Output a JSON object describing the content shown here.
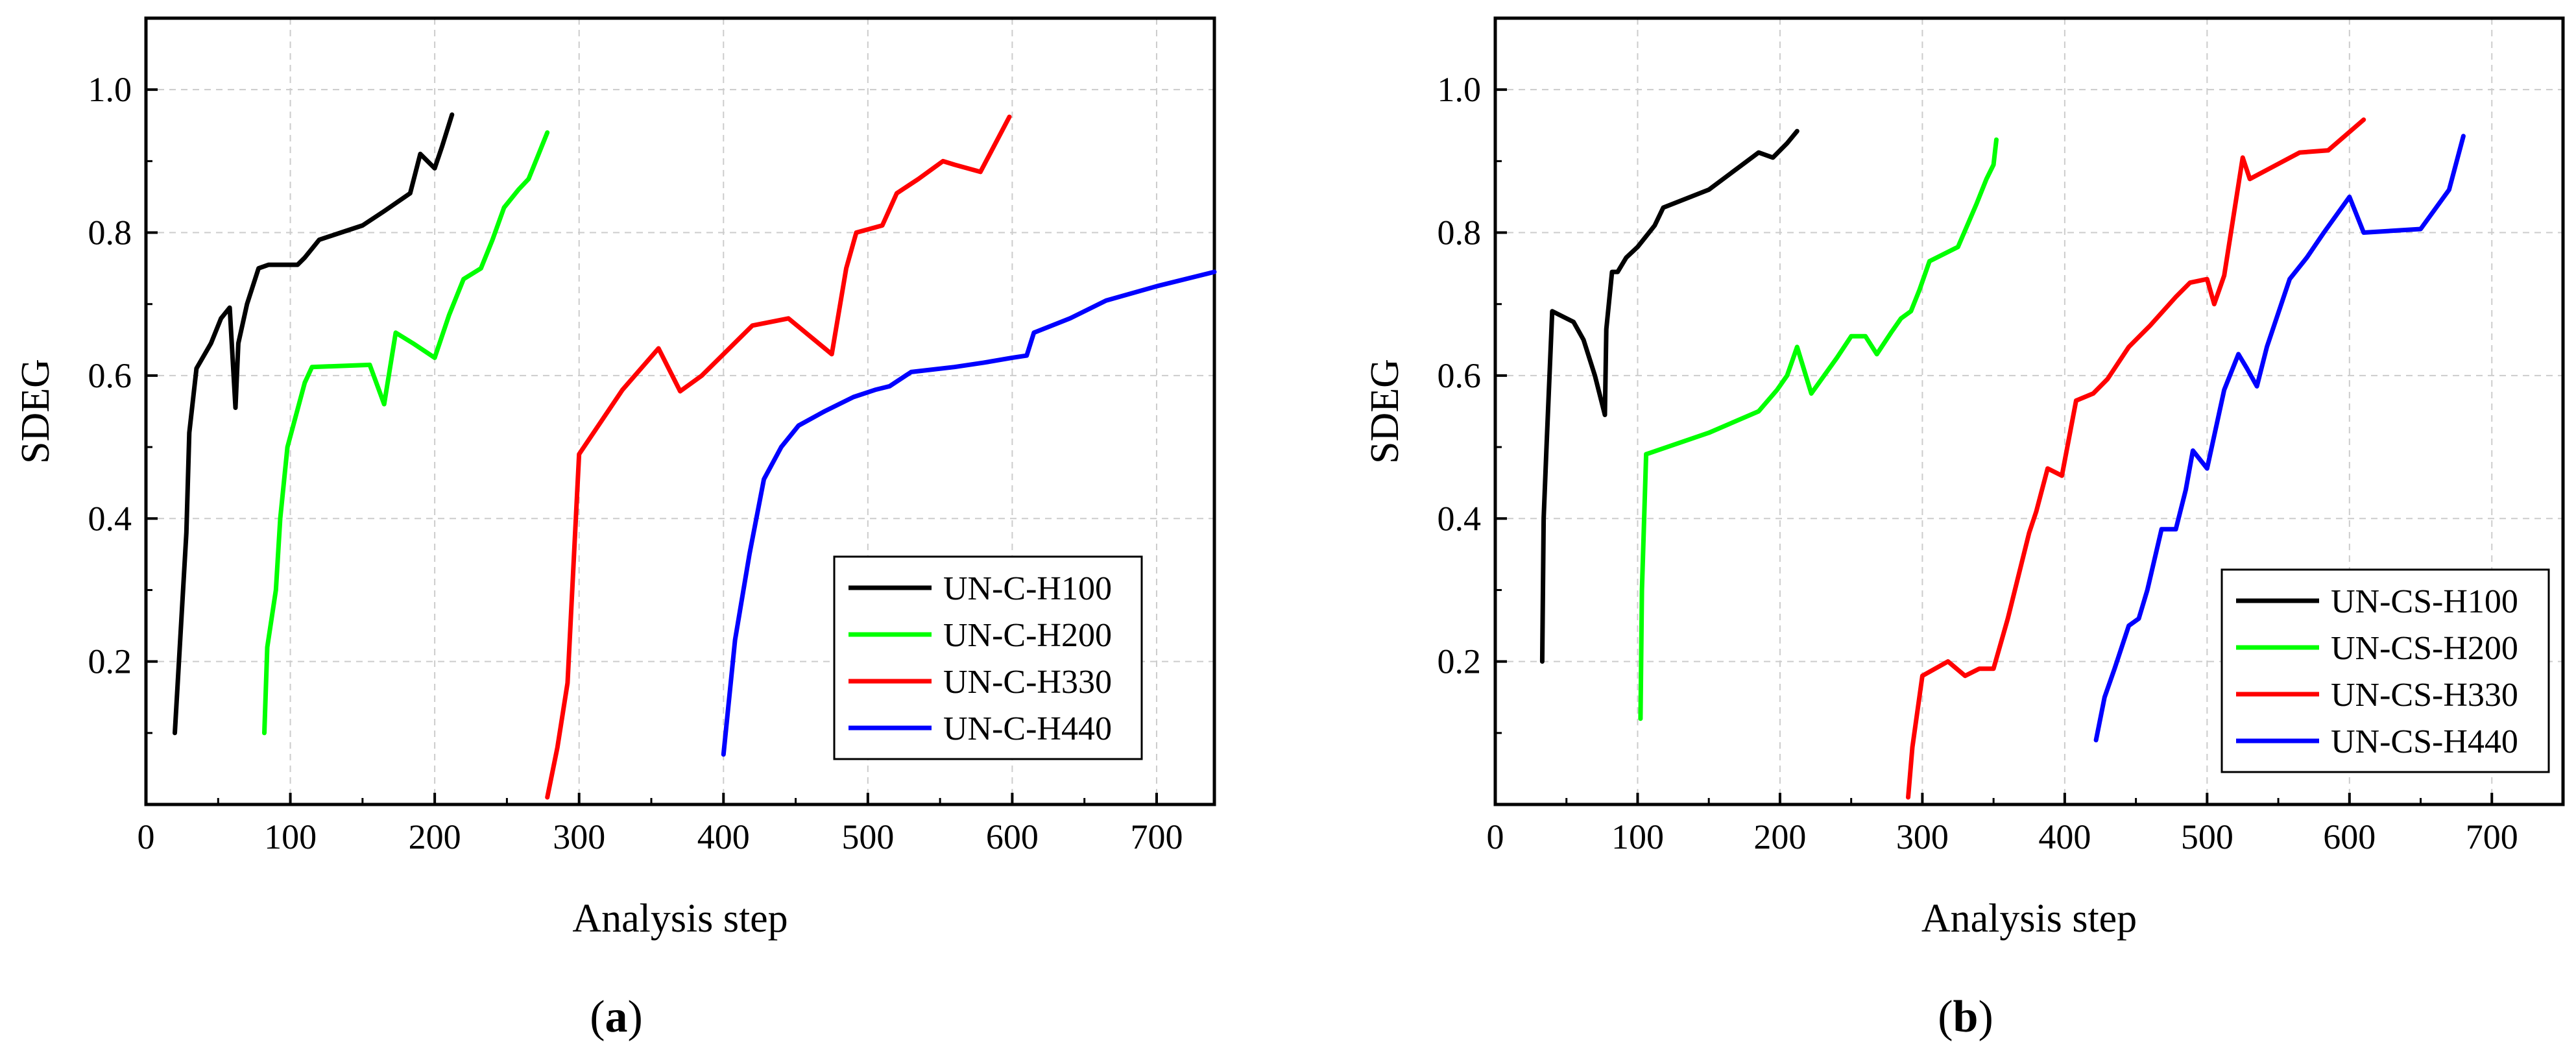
{
  "chart_data": [
    {
      "type": "line",
      "panel_label": "a",
      "xlabel": "Analysis step",
      "ylabel": "SDEG",
      "xlim": [
        0,
        740
      ],
      "ylim": [
        0,
        1.1
      ],
      "xticks": [
        0,
        100,
        200,
        300,
        400,
        500,
        600,
        700
      ],
      "yticks": [
        0.2,
        0.4,
        0.6,
        0.8,
        1.0
      ],
      "xtick_labels": [
        "0",
        "100",
        "200",
        "300",
        "400",
        "500",
        "600",
        "700"
      ],
      "ytick_labels": [
        "0.2",
        "0.4",
        "0.6",
        "0.8",
        "1.0"
      ],
      "grid": true,
      "legend_position": "bottom-right",
      "series": [
        {
          "name": "UN-C-H100",
          "color": "#000000",
          "x": [
            20,
            28,
            30,
            35,
            45,
            52,
            58,
            62,
            64,
            70,
            78,
            85,
            92,
            105,
            110,
            120,
            135,
            150,
            165,
            183,
            190,
            195,
            200,
            205,
            212
          ],
          "y": [
            0.1,
            0.38,
            0.52,
            0.61,
            0.645,
            0.68,
            0.695,
            0.555,
            0.645,
            0.7,
            0.75,
            0.755,
            0.755,
            0.755,
            0.765,
            0.79,
            0.8,
            0.81,
            0.83,
            0.855,
            0.91,
            0.9,
            0.89,
            0.92,
            0.965
          ]
        },
        {
          "name": "UN-C-H200",
          "color": "#00ff00",
          "x": [
            82,
            84,
            90,
            93,
            98,
            110,
            115,
            155,
            165,
            173,
            185,
            200,
            210,
            220,
            232,
            240,
            248,
            258,
            265,
            272,
            278
          ],
          "y": [
            0.1,
            0.22,
            0.3,
            0.4,
            0.5,
            0.59,
            0.612,
            0.615,
            0.56,
            0.66,
            0.645,
            0.625,
            0.685,
            0.735,
            0.75,
            0.79,
            0.835,
            0.86,
            0.875,
            0.91,
            0.94
          ]
        },
        {
          "name": "UN-C-H330",
          "color": "#ff0000",
          "x": [
            278,
            285,
            292,
            300,
            330,
            355,
            370,
            385,
            400,
            420,
            445,
            475,
            485,
            492,
            510,
            520,
            535,
            552,
            560,
            578,
            598
          ],
          "y": [
            0.01,
            0.08,
            0.17,
            0.49,
            0.58,
            0.638,
            0.578,
            0.6,
            0.63,
            0.67,
            0.68,
            0.63,
            0.75,
            0.8,
            0.81,
            0.855,
            0.875,
            0.9,
            0.895,
            0.885,
            0.962
          ]
        },
        {
          "name": "UN-C-H440",
          "color": "#0000ff",
          "x": [
            400,
            408,
            418,
            428,
            440,
            452,
            470,
            490,
            505,
            515,
            530,
            560,
            580,
            600,
            610,
            615,
            640,
            665,
            700,
            740
          ],
          "y": [
            0.07,
            0.23,
            0.35,
            0.455,
            0.5,
            0.53,
            0.55,
            0.57,
            0.58,
            0.585,
            0.605,
            0.612,
            0.618,
            0.625,
            0.628,
            0.66,
            0.68,
            0.705,
            0.725,
            0.745
          ]
        }
      ]
    },
    {
      "type": "line",
      "panel_label": "b",
      "xlabel": "Analysis step",
      "ylabel": "SDEG",
      "xlim": [
        0,
        750
      ],
      "ylim": [
        0,
        1.1
      ],
      "xticks": [
        0,
        100,
        200,
        300,
        400,
        500,
        600,
        700
      ],
      "yticks": [
        0.2,
        0.4,
        0.6,
        0.8,
        1.0
      ],
      "xtick_labels": [
        "0",
        "100",
        "200",
        "300",
        "400",
        "500",
        "600",
        "700"
      ],
      "ytick_labels": [
        "0.2",
        "0.4",
        "0.6",
        "0.8",
        "1.0"
      ],
      "grid": true,
      "legend_position": "bottom-right",
      "series": [
        {
          "name": "UN-CS-H100",
          "color": "#000000",
          "x": [
            33,
            34,
            36,
            40,
            50,
            55,
            62,
            70,
            77,
            78,
            82,
            86,
            92,
            100,
            112,
            118,
            150,
            185,
            195,
            205,
            212
          ],
          "y": [
            0.2,
            0.4,
            0.5,
            0.69,
            0.68,
            0.675,
            0.65,
            0.6,
            0.545,
            0.665,
            0.745,
            0.745,
            0.765,
            0.78,
            0.81,
            0.835,
            0.86,
            0.912,
            0.905,
            0.925,
            0.942
          ]
        },
        {
          "name": "UN-CS-H200",
          "color": "#00ff00",
          "x": [
            102,
            103,
            106,
            150,
            185,
            198,
            205,
            212,
            222,
            240,
            250,
            260,
            268,
            278,
            285,
            292,
            298,
            305,
            325,
            338,
            345,
            350,
            352
          ],
          "y": [
            0.12,
            0.3,
            0.49,
            0.52,
            0.55,
            0.58,
            0.6,
            0.64,
            0.575,
            0.625,
            0.655,
            0.655,
            0.63,
            0.66,
            0.68,
            0.69,
            0.72,
            0.76,
            0.78,
            0.84,
            0.875,
            0.895,
            0.93
          ]
        },
        {
          "name": "UN-CS-H330",
          "color": "#ff0000",
          "x": [
            290,
            293,
            300,
            318,
            330,
            340,
            350,
            360,
            375,
            380,
            388,
            398,
            408,
            420,
            430,
            445,
            460,
            478,
            488,
            500,
            505,
            512,
            525,
            530,
            565,
            585,
            610
          ],
          "y": [
            0.01,
            0.08,
            0.18,
            0.2,
            0.18,
            0.19,
            0.19,
            0.26,
            0.38,
            0.41,
            0.47,
            0.46,
            0.565,
            0.575,
            0.595,
            0.64,
            0.67,
            0.71,
            0.73,
            0.735,
            0.7,
            0.74,
            0.905,
            0.875,
            0.912,
            0.915,
            0.958
          ]
        },
        {
          "name": "UN-CS-H440",
          "color": "#0000ff",
          "x": [
            422,
            428,
            435,
            445,
            452,
            458,
            468,
            478,
            485,
            490,
            500,
            512,
            522,
            528,
            535,
            542,
            558,
            570,
            582,
            600,
            610,
            650,
            670,
            680
          ],
          "y": [
            0.09,
            0.15,
            0.19,
            0.25,
            0.26,
            0.3,
            0.385,
            0.385,
            0.44,
            0.495,
            0.47,
            0.58,
            0.63,
            0.61,
            0.585,
            0.64,
            0.735,
            0.765,
            0.8,
            0.85,
            0.8,
            0.805,
            0.86,
            0.935
          ]
        }
      ]
    }
  ]
}
